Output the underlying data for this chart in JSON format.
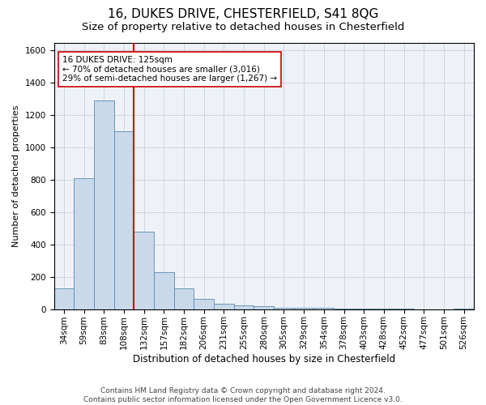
{
  "title1": "16, DUKES DRIVE, CHESTERFIELD, S41 8QG",
  "title2": "Size of property relative to detached houses in Chesterfield",
  "xlabel": "Distribution of detached houses by size in Chesterfield",
  "ylabel": "Number of detached properties",
  "categories": [
    "34sqm",
    "59sqm",
    "83sqm",
    "108sqm",
    "132sqm",
    "157sqm",
    "182sqm",
    "206sqm",
    "231sqm",
    "255sqm",
    "280sqm",
    "305sqm",
    "329sqm",
    "354sqm",
    "378sqm",
    "403sqm",
    "428sqm",
    "452sqm",
    "477sqm",
    "501sqm",
    "526sqm"
  ],
  "values": [
    130,
    810,
    1290,
    1100,
    480,
    230,
    130,
    65,
    35,
    25,
    18,
    10,
    8,
    8,
    3,
    2,
    2,
    1,
    0,
    0,
    5
  ],
  "bar_color": "#c9d9ea",
  "bar_edge_color": "#5a8ab0",
  "property_line_color": "#cc0000",
  "annotation_text": "16 DUKES DRIVE: 125sqm\n← 70% of detached houses are smaller (3,016)\n29% of semi-detached houses are larger (1,267) →",
  "annotation_box_color": "#ffffff",
  "annotation_box_edge": "#cc0000",
  "ylim": [
    0,
    1650
  ],
  "yticks": [
    0,
    200,
    400,
    600,
    800,
    1000,
    1200,
    1400,
    1600
  ],
  "grid_color": "#c8d0dc",
  "background_color": "#eef2f8",
  "footer_text": "Contains HM Land Registry data © Crown copyright and database right 2024.\nContains public sector information licensed under the Open Government Licence v3.0.",
  "title1_fontsize": 11,
  "title2_fontsize": 9.5,
  "xlabel_fontsize": 8.5,
  "ylabel_fontsize": 8,
  "tick_fontsize": 7.5,
  "footer_fontsize": 6.5,
  "ann_fontsize": 7.5
}
